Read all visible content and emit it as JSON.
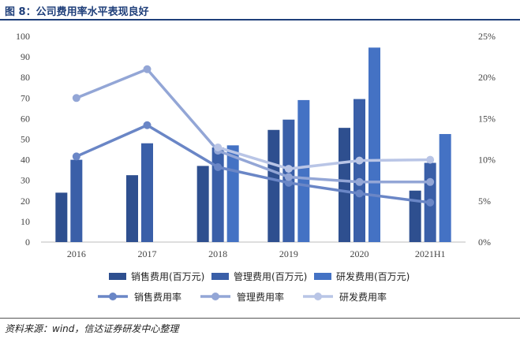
{
  "header": {
    "title": "图 8：公司费用率水平表现良好"
  },
  "footer": {
    "source": "资料来源：wind，信达证券研发中心整理"
  },
  "chart_data": {
    "type": "bar",
    "categories": [
      "2016",
      "2017",
      "2018",
      "2019",
      "2020",
      "2021H1"
    ],
    "y_left": {
      "min": 0,
      "max": 100,
      "step": 10,
      "ticks": [
        "0",
        "10",
        "20",
        "30",
        "40",
        "50",
        "60",
        "70",
        "80",
        "90",
        "100"
      ]
    },
    "y_right": {
      "min": 0,
      "max": 25,
      "step": 5,
      "ticks": [
        "0%",
        "5%",
        "10%",
        "15%",
        "20%",
        "25%"
      ]
    },
    "bar_series": [
      {
        "name": "销售费用(百万元)",
        "color": "#2e4f8f",
        "values": [
          24,
          32.5,
          37,
          54.5,
          55.5,
          25
        ]
      },
      {
        "name": "管理费用(百万元)",
        "color": "#3a5fa8",
        "values": [
          40,
          48,
          46,
          59.5,
          69.5,
          38.5
        ]
      },
      {
        "name": "研发费用(百万元)",
        "color": "#4472c4",
        "values": [
          null,
          null,
          47,
          69,
          94.5,
          52.5
        ]
      }
    ],
    "line_series": [
      {
        "name": "销售费用率",
        "color": "#6a86c6",
        "values": [
          10.4,
          14.2,
          9.1,
          7.2,
          5.9,
          4.8
        ]
      },
      {
        "name": "管理费用率",
        "color": "#93a6d6",
        "values": [
          17.5,
          21,
          11.1,
          7.9,
          7.3,
          7.3
        ]
      },
      {
        "name": "研发费用率",
        "color": "#b9c5e6",
        "values": [
          null,
          null,
          11.5,
          8.9,
          9.9,
          10
        ]
      }
    ],
    "legend_position": "bottom",
    "grid": false
  }
}
